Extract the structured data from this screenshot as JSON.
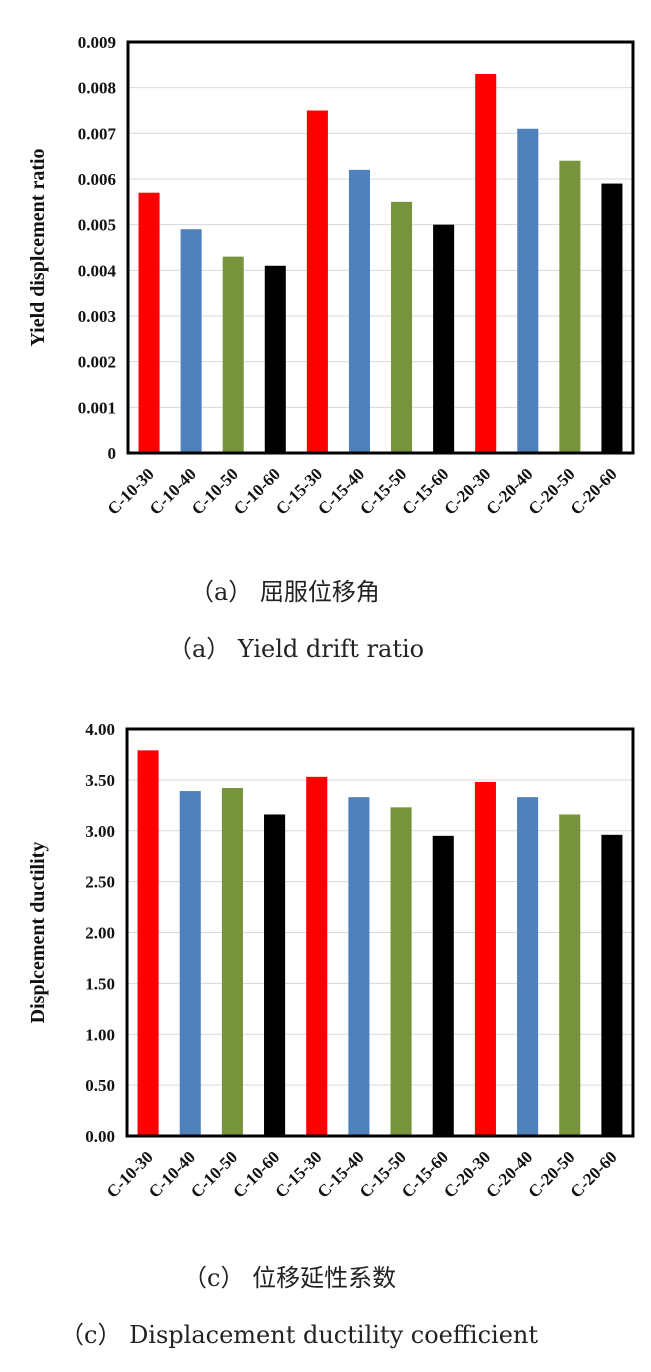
{
  "colors": {
    "red": "#ff0000",
    "blue": "#4f81bd",
    "green": "#77933c",
    "black": "#000000",
    "grid": "#d9d9d9"
  },
  "chart_data": [
    {
      "type": "bar",
      "title": "",
      "xlabel": "",
      "ylabel": "Yield displcement ratio",
      "ylim": [
        0,
        0.009
      ],
      "yticks": [
        "0",
        "0.001",
        "0.002",
        "0.003",
        "0.004",
        "0.005",
        "0.006",
        "0.007",
        "0.008",
        "0.009"
      ],
      "grid": true,
      "categories": [
        "C-10-30",
        "C-10-40",
        "C-10-50",
        "C-10-60",
        "C-15-30",
        "C-15-40",
        "C-15-50",
        "C-15-60",
        "C-20-30",
        "C-20-40",
        "C-20-50",
        "C-20-60"
      ],
      "values": [
        0.0057,
        0.0049,
        0.0043,
        0.0041,
        0.0075,
        0.0062,
        0.0055,
        0.005,
        0.0083,
        0.0071,
        0.0064,
        0.0059
      ],
      "bar_colors": [
        "red",
        "blue",
        "green",
        "black",
        "red",
        "blue",
        "green",
        "black",
        "red",
        "blue",
        "green",
        "black"
      ],
      "caption_cn": "（a） 屈服位移角",
      "caption_en": "（a） Yield drift ratio"
    },
    {
      "type": "bar",
      "title": "",
      "xlabel": "",
      "ylabel": "Displcement ductility",
      "ylim": [
        0,
        4
      ],
      "yticks": [
        "0.00",
        "0.50",
        "1.00",
        "1.50",
        "2.00",
        "2.50",
        "3.00",
        "3.50",
        "4.00"
      ],
      "grid": true,
      "categories": [
        "C-10-30",
        "C-10-40",
        "C-10-50",
        "C-10-60",
        "C-15-30",
        "C-15-40",
        "C-15-50",
        "C-15-60",
        "C-20-30",
        "C-20-40",
        "C-20-50",
        "C-20-60"
      ],
      "values": [
        3.79,
        3.39,
        3.42,
        3.16,
        3.53,
        3.33,
        3.23,
        2.95,
        3.48,
        3.33,
        3.16,
        2.96
      ],
      "bar_colors": [
        "red",
        "blue",
        "green",
        "black",
        "red",
        "blue",
        "green",
        "black",
        "red",
        "blue",
        "green",
        "black"
      ],
      "caption_cn": "（c） 位移延性系数",
      "caption_en": "（c） Displacement ductility coefficient"
    }
  ]
}
